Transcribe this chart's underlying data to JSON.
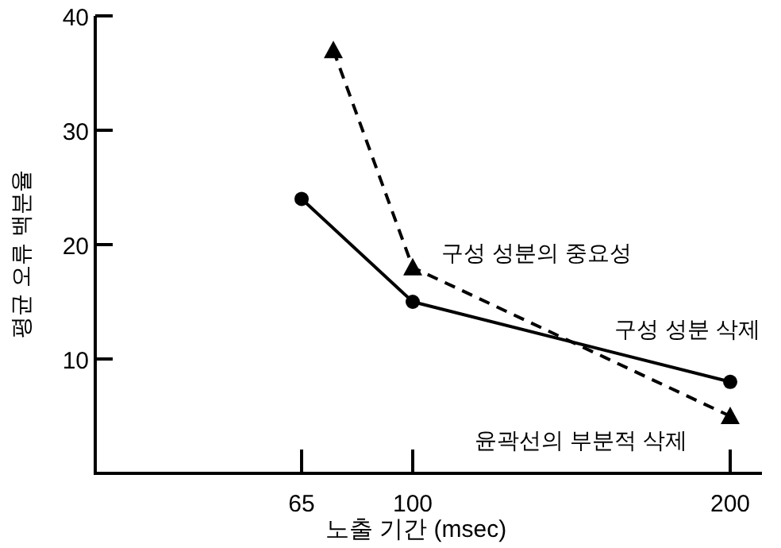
{
  "chart_data": {
    "type": "line",
    "xlabel": "노출 기간 (msec)",
    "ylabel": "평균 오류 백분율",
    "xlim": [
      0,
      210
    ],
    "ylim": [
      0,
      40
    ],
    "xticks": [
      65,
      100,
      200
    ],
    "yticks": [
      10,
      20,
      30,
      40
    ],
    "grid": false,
    "series": [
      {
        "color": "#000000",
        "x": [
          65,
          100,
          200
        ],
        "values": [
          24,
          15,
          8
        ],
        "marker": "circle",
        "line_style": "solid"
      },
      {
        "color": "#000000",
        "x": [
          75,
          100,
          200
        ],
        "values": [
          37,
          18,
          5
        ],
        "marker": "triangle",
        "line_style": "dashed"
      }
    ],
    "annotations": [
      "구성 성분의 중요성",
      "구성 성분 삭제",
      "윤곽선의 부분적 삭제"
    ]
  }
}
